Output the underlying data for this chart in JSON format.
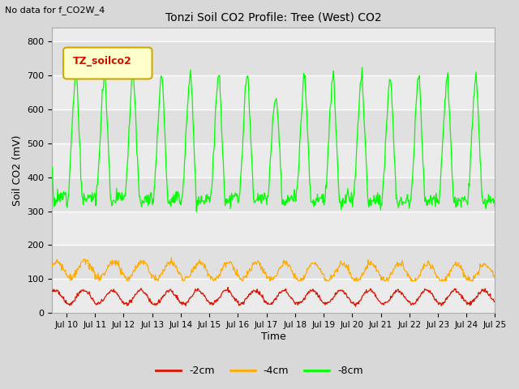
{
  "title": "Tonzi Soil CO2 Profile: Tree (West) CO2",
  "top_left_text": "No data for f_CO2W_4",
  "ylabel": "Soil CO2 (mV)",
  "xlabel": "Time",
  "ylim": [
    0,
    840
  ],
  "yticks": [
    0,
    100,
    200,
    300,
    400,
    500,
    600,
    700,
    800
  ],
  "bg_color": "#d8d8d8",
  "plot_bg_light": "#ebebeb",
  "plot_bg_dark": "#e0e0e0",
  "series": [
    {
      "label": "-2cm",
      "color": "#dd1100"
    },
    {
      "label": "-4cm",
      "color": "#ffaa00"
    },
    {
      "label": "-8cm",
      "color": "#00ff00"
    }
  ],
  "legend_box_color": "#ffffcc",
  "legend_box_edge": "#ccaa00",
  "legend_box_text_color": "#cc1100",
  "legend_box_label": "TZ_soilco2",
  "xstart": 9.5,
  "xend": 25,
  "xtick_labels": [
    "Jul 10",
    "Jul 11",
    "Jul 12",
    "Jul 13",
    "Jul 14",
    "Jul 15",
    "Jul 16",
    "Jul 17",
    "Jul 18",
    "Jul 19",
    "Jul 20",
    "Jul 21",
    "Jul 22",
    "Jul 23",
    "Jul 24",
    "Jul 25"
  ],
  "xtick_positions": [
    10,
    11,
    12,
    13,
    14,
    15,
    16,
    17,
    18,
    19,
    20,
    21,
    22,
    23,
    24,
    25
  ]
}
